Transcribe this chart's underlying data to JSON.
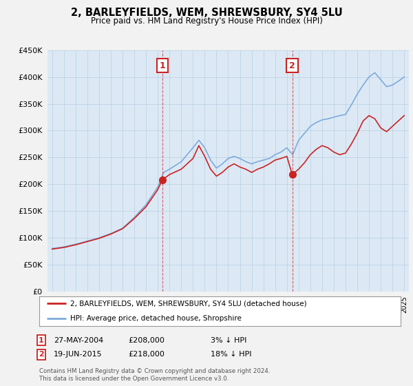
{
  "title": "2, BARLEYFIELDS, WEM, SHREWSBURY, SY4 5LU",
  "subtitle": "Price paid vs. HM Land Registry's House Price Index (HPI)",
  "legend_line1": "2, BARLEYFIELDS, WEM, SHREWSBURY, SY4 5LU (detached house)",
  "legend_line2": "HPI: Average price, detached house, Shropshire",
  "annotation1_date": "27-MAY-2004",
  "annotation1_price": "£208,000",
  "annotation1_hpi": "3% ↓ HPI",
  "annotation1_year": 2004.38,
  "annotation1_value": 208000,
  "annotation2_date": "19-JUN-2015",
  "annotation2_price": "£218,000",
  "annotation2_hpi": "18% ↓ HPI",
  "annotation2_year": 2015.46,
  "annotation2_value": 218000,
  "footer1": "Contains HM Land Registry data © Crown copyright and database right 2024.",
  "footer2": "This data is licensed under the Open Government Licence v3.0.",
  "hpi_color": "#7eaadc",
  "price_color": "#cc2222",
  "annotation_color": "#cc2222",
  "bg_color": "#f2f2f2",
  "plot_bg": "#dce9f5",
  "ylim": [
    0,
    450000
  ],
  "yticks": [
    0,
    50000,
    100000,
    150000,
    200000,
    250000,
    300000,
    350000,
    400000,
    450000
  ],
  "xlim_start": 1994.6,
  "xlim_end": 2025.4,
  "hpi_points": {
    "1995.0": 80000,
    "1996.0": 83000,
    "1997.0": 88000,
    "1998.0": 94000,
    "1999.0": 100000,
    "2000.0": 108000,
    "2001.0": 118000,
    "2002.0": 138000,
    "2003.0": 162000,
    "2004.0": 195000,
    "2004.5": 222000,
    "2005.0": 228000,
    "2006.0": 242000,
    "2007.0": 268000,
    "2007.5": 282000,
    "2008.0": 268000,
    "2008.5": 245000,
    "2009.0": 230000,
    "2009.5": 238000,
    "2010.0": 248000,
    "2010.5": 252000,
    "2011.0": 248000,
    "2011.5": 242000,
    "2012.0": 238000,
    "2012.5": 242000,
    "2013.0": 245000,
    "2013.5": 248000,
    "2014.0": 255000,
    "2014.5": 260000,
    "2015.0": 268000,
    "2015.5": 255000,
    "2016.0": 282000,
    "2016.5": 295000,
    "2017.0": 308000,
    "2017.5": 315000,
    "2018.0": 320000,
    "2018.5": 322000,
    "2019.0": 325000,
    "2019.5": 328000,
    "2020.0": 330000,
    "2020.5": 348000,
    "2021.0": 368000,
    "2021.5": 385000,
    "2022.0": 400000,
    "2022.5": 408000,
    "2023.0": 395000,
    "2023.5": 382000,
    "2024.0": 385000,
    "2024.5": 392000,
    "2025.0": 400000
  },
  "price_points": {
    "1995.0": 79000,
    "1996.0": 82000,
    "1997.0": 87000,
    "1998.0": 93000,
    "1999.0": 99000,
    "2000.0": 107000,
    "2001.0": 117000,
    "2002.0": 136000,
    "2003.0": 158000,
    "2004.0": 190000,
    "2004.38": 208000,
    "2005.0": 218000,
    "2006.0": 228000,
    "2007.0": 248000,
    "2007.5": 272000,
    "2008.0": 252000,
    "2008.5": 228000,
    "2009.0": 215000,
    "2009.5": 222000,
    "2010.0": 232000,
    "2010.5": 238000,
    "2011.0": 232000,
    "2011.5": 228000,
    "2012.0": 222000,
    "2012.5": 228000,
    "2013.0": 232000,
    "2013.5": 238000,
    "2014.0": 245000,
    "2014.5": 248000,
    "2015.0": 252000,
    "2015.46": 218000,
    "2016.0": 228000,
    "2016.5": 240000,
    "2017.0": 255000,
    "2017.5": 265000,
    "2018.0": 272000,
    "2018.5": 268000,
    "2019.0": 260000,
    "2019.5": 255000,
    "2020.0": 258000,
    "2020.5": 275000,
    "2021.0": 295000,
    "2021.5": 318000,
    "2022.0": 328000,
    "2022.5": 322000,
    "2023.0": 305000,
    "2023.5": 298000,
    "2024.0": 308000,
    "2024.5": 318000,
    "2025.0": 328000
  }
}
